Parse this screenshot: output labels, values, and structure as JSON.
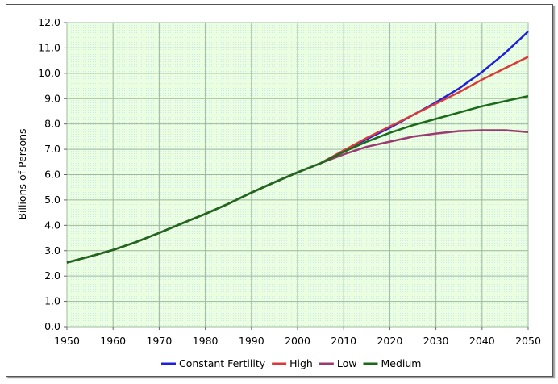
{
  "chart_data": {
    "type": "line",
    "title": "",
    "xlabel": "",
    "ylabel": "Billions of Persons",
    "xlim": [
      1950,
      2050
    ],
    "ylim": [
      0,
      12
    ],
    "xticks": [
      "1950",
      "1960",
      "1970",
      "1980",
      "1990",
      "2000",
      "2010",
      "2020",
      "2030",
      "2040",
      "2050"
    ],
    "yticks": [
      "0.0",
      "1.0",
      "2.0",
      "3.0",
      "4.0",
      "5.0",
      "6.0",
      "7.0",
      "8.0",
      "9.0",
      "10.0",
      "11.0",
      "12.0"
    ],
    "grid": true,
    "legend_position": "bottom",
    "x": [
      1950,
      1955,
      1960,
      1965,
      1970,
      1975,
      1980,
      1985,
      1990,
      1995,
      2000,
      2005,
      2010,
      2015,
      2020,
      2025,
      2030,
      2035,
      2040,
      2045,
      2050
    ],
    "series": [
      {
        "name": "Constant Fertility",
        "color": "#1f1fdc",
        "values": [
          2.53,
          2.77,
          3.03,
          3.34,
          3.7,
          4.08,
          4.45,
          4.85,
          5.29,
          5.7,
          6.09,
          6.45,
          6.95,
          7.4,
          7.85,
          8.35,
          8.85,
          9.4,
          10.05,
          10.8,
          11.65
        ]
      },
      {
        "name": "High",
        "color": "#d93a3a",
        "values": [
          2.53,
          2.77,
          3.03,
          3.34,
          3.7,
          4.08,
          4.45,
          4.85,
          5.29,
          5.7,
          6.09,
          6.45,
          6.95,
          7.45,
          7.9,
          8.35,
          8.8,
          9.25,
          9.75,
          10.2,
          10.65
        ]
      },
      {
        "name": "Low",
        "color": "#9b3a72",
        "values": [
          2.53,
          2.77,
          3.03,
          3.34,
          3.7,
          4.08,
          4.45,
          4.85,
          5.29,
          5.7,
          6.09,
          6.45,
          6.8,
          7.1,
          7.3,
          7.5,
          7.62,
          7.72,
          7.75,
          7.75,
          7.68
        ]
      },
      {
        "name": "Medium",
        "color": "#1a6a1a",
        "values": [
          2.53,
          2.77,
          3.03,
          3.34,
          3.7,
          4.08,
          4.45,
          4.85,
          5.29,
          5.7,
          6.09,
          6.45,
          6.9,
          7.3,
          7.65,
          7.95,
          8.2,
          8.45,
          8.7,
          8.9,
          9.1
        ]
      }
    ]
  }
}
